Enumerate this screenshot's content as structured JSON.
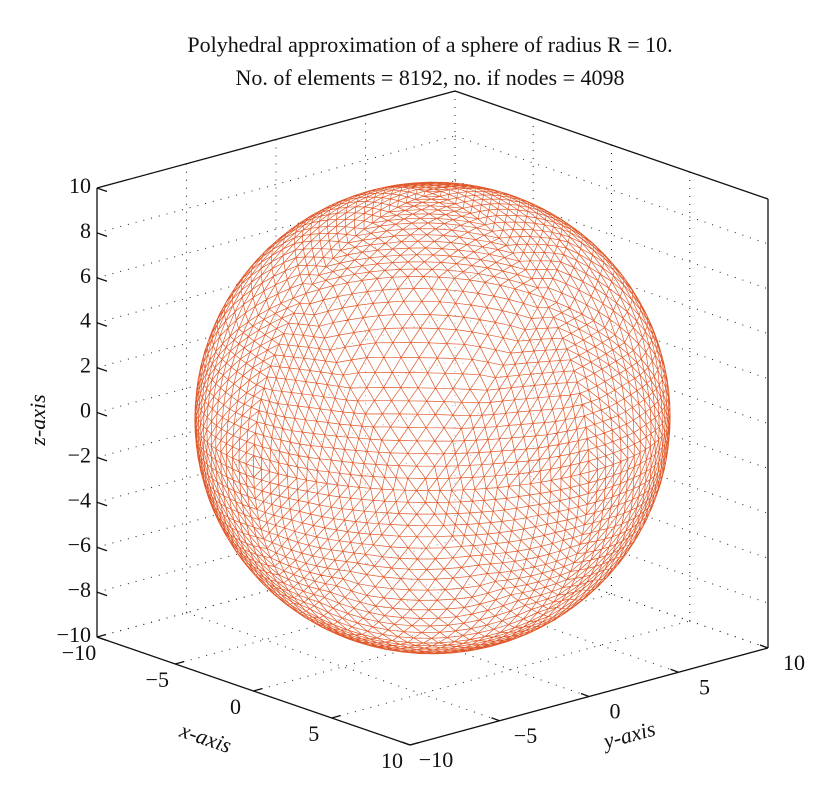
{
  "chart_data": {
    "type": "sphere-mesh",
    "title": [
      "Polyhedral approximation of a sphere of radius R = 10.",
      "No. of elements = 8192, no. if nodes = 4098"
    ],
    "xlabel": "x-axis",
    "ylabel": "y-axis",
    "zlabel": "z-axis",
    "color": "#e0592a",
    "xlim": [
      -10,
      10
    ],
    "ylim": [
      -10,
      10
    ],
    "zlim": [
      -10,
      10
    ],
    "xticks": [
      {
        "value": -10,
        "label": "−10"
      },
      {
        "value": -5,
        "label": "−5"
      },
      0,
      5,
      10
    ],
    "yticks": [
      {
        "value": -10,
        "label": "−10"
      },
      {
        "value": -5,
        "label": "−5"
      },
      0,
      5,
      10
    ],
    "zticks": [
      {
        "value": -10,
        "label": "−10"
      },
      {
        "value": -8,
        "label": "−8"
      },
      {
        "value": -6,
        "label": "−6"
      },
      {
        "value": -4,
        "label": "−4"
      },
      {
        "value": -2,
        "label": "−2"
      },
      0,
      2,
      4,
      6,
      8,
      10
    ],
    "grid": true
  }
}
